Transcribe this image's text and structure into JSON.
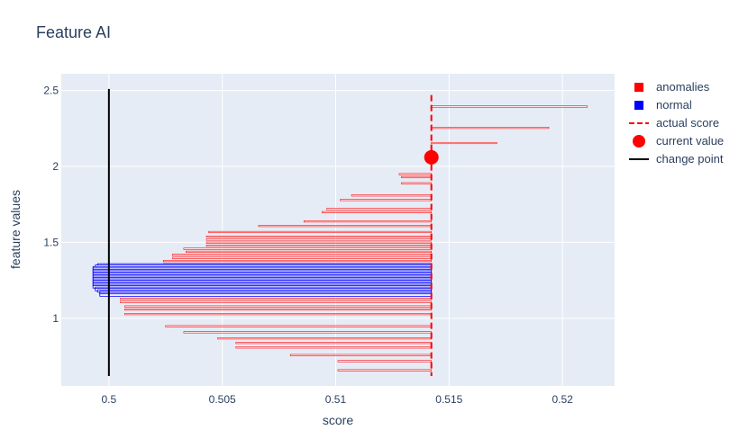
{
  "chart_data": {
    "type": "bar",
    "orientation": "horizontal",
    "title": "Feature AI",
    "xlabel": "score",
    "ylabel": "feature values",
    "xlim": [
      0.4979,
      0.5223
    ],
    "ylim": [
      0.555,
      2.61
    ],
    "x_ticks": [
      0.5,
      0.505,
      0.51,
      0.515,
      0.52
    ],
    "x_tick_labels": [
      "0.5",
      "0.505",
      "0.51",
      "0.515",
      "0.52"
    ],
    "y_ticks": [
      1,
      1.5,
      2,
      2.5
    ],
    "y_tick_labels": [
      "1",
      "1.5",
      "2",
      "2.5"
    ],
    "grid": true,
    "background_color": "#e5ecf6",
    "baseline_score": 0.51422,
    "series": [
      {
        "name": "anomalies",
        "color": "#ff0000",
        "bars": [
          {
            "y": 2.394,
            "x": 0.5211
          },
          {
            "y": 2.254,
            "x": 0.5194
          },
          {
            "y": 2.154,
            "x": 0.5171
          },
          {
            "y": 1.949,
            "x": 0.5128
          },
          {
            "y": 1.929,
            "x": 0.5129
          },
          {
            "y": 1.889,
            "x": 0.5129
          },
          {
            "y": 1.809,
            "x": 0.5107
          },
          {
            "y": 1.779,
            "x": 0.5102
          },
          {
            "y": 1.719,
            "x": 0.5096
          },
          {
            "y": 1.699,
            "x": 0.5094
          },
          {
            "y": 1.638,
            "x": 0.5086
          },
          {
            "y": 1.608,
            "x": 0.5066
          },
          {
            "y": 1.568,
            "x": 0.5044
          },
          {
            "y": 1.538,
            "x": 0.5043
          },
          {
            "y": 1.518,
            "x": 0.5043
          },
          {
            "y": 1.498,
            "x": 0.5043
          },
          {
            "y": 1.478,
            "x": 0.5043
          },
          {
            "y": 1.458,
            "x": 0.5033
          },
          {
            "y": 1.438,
            "x": 0.5034
          },
          {
            "y": 1.418,
            "x": 0.5028
          },
          {
            "y": 1.398,
            "x": 0.5028
          },
          {
            "y": 1.378,
            "x": 0.5024
          },
          {
            "y": 1.358,
            "x": 0.5024
          },
          {
            "y": 1.338,
            "x": 0.5013
          },
          {
            "y": 1.318,
            "x": 0.5008
          },
          {
            "y": 1.298,
            "x": 0.5008
          },
          {
            "y": 1.278,
            "x": 0.5008
          },
          {
            "y": 1.258,
            "x": 0.5006
          },
          {
            "y": 1.238,
            "x": 0.5007
          },
          {
            "y": 1.208,
            "x": 0.5007
          },
          {
            "y": 1.188,
            "x": 0.5005
          },
          {
            "y": 1.128,
            "x": 0.5005
          },
          {
            "y": 1.108,
            "x": 0.5005
          },
          {
            "y": 1.078,
            "x": 0.5007
          },
          {
            "y": 1.058,
            "x": 0.5007
          },
          {
            "y": 1.028,
            "x": 0.5007
          },
          {
            "y": 0.948,
            "x": 0.5025
          },
          {
            "y": 0.908,
            "x": 0.5033
          },
          {
            "y": 0.868,
            "x": 0.5048
          },
          {
            "y": 0.838,
            "x": 0.5056
          },
          {
            "y": 0.808,
            "x": 0.5056
          },
          {
            "y": 0.758,
            "x": 0.508
          },
          {
            "y": 0.718,
            "x": 0.5101
          },
          {
            "y": 0.658,
            "x": 0.5101
          }
        ]
      },
      {
        "name": "normal",
        "color": "#0000ff",
        "bars": [
          {
            "y": 1.352,
            "x": 0.4995
          },
          {
            "y": 1.343,
            "x": 0.4994
          },
          {
            "y": 1.333,
            "x": 0.4993
          },
          {
            "y": 1.324,
            "x": 0.4993
          },
          {
            "y": 1.315,
            "x": 0.4993
          },
          {
            "y": 1.306,
            "x": 0.4993
          },
          {
            "y": 1.297,
            "x": 0.4993
          },
          {
            "y": 1.288,
            "x": 0.4993
          },
          {
            "y": 1.279,
            "x": 0.4993
          },
          {
            "y": 1.27,
            "x": 0.4993
          },
          {
            "y": 1.261,
            "x": 0.4993
          },
          {
            "y": 1.252,
            "x": 0.4993
          },
          {
            "y": 1.243,
            "x": 0.4993
          },
          {
            "y": 1.234,
            "x": 0.4993
          },
          {
            "y": 1.225,
            "x": 0.4993
          },
          {
            "y": 1.216,
            "x": 0.4993
          },
          {
            "y": 1.207,
            "x": 0.4993
          },
          {
            "y": 1.198,
            "x": 0.4994
          },
          {
            "y": 1.189,
            "x": 0.4994
          },
          {
            "y": 1.18,
            "x": 0.4995
          },
          {
            "y": 1.171,
            "x": 0.4996
          },
          {
            "y": 1.162,
            "x": 0.4996
          },
          {
            "y": 1.153,
            "x": 0.4996
          }
        ]
      },
      {
        "name": "actual score",
        "color": "#ff0000",
        "dash": true,
        "x": 0.51422,
        "y_range": [
          0.62,
          2.47
        ]
      },
      {
        "name": "current value",
        "color": "#ff0000",
        "marker": "circle",
        "x": 0.51422,
        "y": 2.06
      },
      {
        "name": "change point",
        "color": "#000000",
        "x": 0.5,
        "y_range": [
          0.62,
          2.51
        ]
      }
    ]
  }
}
